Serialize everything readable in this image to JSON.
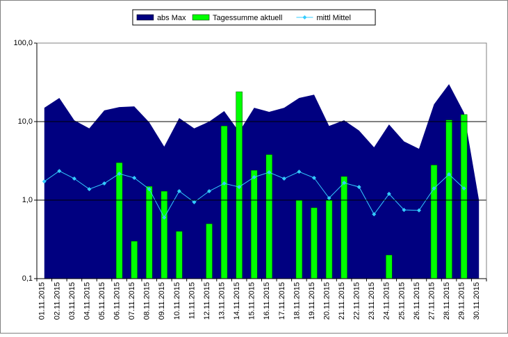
{
  "chart_data": {
    "type": "combo",
    "categories": [
      "01.11.2015",
      "02.11.2015",
      "03.11.2015",
      "04.11.2015",
      "05.11.2015",
      "06.11.2015",
      "07.11.2015",
      "08.11.2015",
      "09.11.2015",
      "10.11.2015",
      "11.11.2015",
      "12.11.2015",
      "13.11.2015",
      "14.11.2015",
      "15.11.2015",
      "16.11.2015",
      "17.11.2015",
      "18.11.2015",
      "19.11.2015",
      "20.11.2015",
      "21.11.2015",
      "22.11.2015",
      "23.11.2015",
      "24.11.2015",
      "25.11.2015",
      "26.11.2015",
      "27.11.2015",
      "28.11.2015",
      "29.11.2015",
      "30.11.2015"
    ],
    "series": [
      {
        "name": "abs Max",
        "type": "area",
        "color": "#000080",
        "values": [
          15,
          20,
          10.4,
          8.2,
          13.9,
          15.3,
          15.6,
          9.8,
          4.8,
          11.1,
          8.2,
          10,
          13.6,
          7.4,
          15,
          13.3,
          15,
          20,
          22,
          8.8,
          10.4,
          7.7,
          4.7,
          9.2,
          5.6,
          4.5,
          16.6,
          30,
          13,
          1
        ]
      },
      {
        "name": "Tagessumme aktuell",
        "type": "bar",
        "color": "#00ff00",
        "values": [
          null,
          null,
          null,
          null,
          null,
          3.0,
          0.3,
          1.5,
          1.3,
          0.4,
          null,
          0.5,
          8.8,
          24,
          2.4,
          3.8,
          null,
          1.0,
          0.8,
          1.0,
          2.0,
          null,
          null,
          0.2,
          null,
          null,
          2.8,
          10.5,
          12.3,
          null
        ]
      },
      {
        "name": "mittl Mittel",
        "type": "line",
        "color": "#33ccff",
        "values": [
          1.73,
          2.35,
          1.88,
          1.38,
          1.63,
          2.17,
          1.92,
          1.38,
          0.6,
          1.3,
          0.94,
          1.3,
          1.63,
          1.47,
          1.96,
          2.26,
          1.88,
          2.3,
          1.92,
          1.06,
          1.66,
          1.47,
          0.66,
          1.2,
          0.75,
          0.74,
          1.41,
          2.13,
          1.41,
          null
        ]
      }
    ],
    "log_y": true,
    "ylim": [
      0.1,
      100
    ],
    "yticks": [
      {
        "value": 0.1,
        "label": "0,1"
      },
      {
        "value": 1,
        "label": "1,0"
      },
      {
        "value": 10,
        "label": "10,0"
      },
      {
        "value": 100,
        "label": "100,0"
      }
    ],
    "grid": true,
    "legend": "top"
  }
}
